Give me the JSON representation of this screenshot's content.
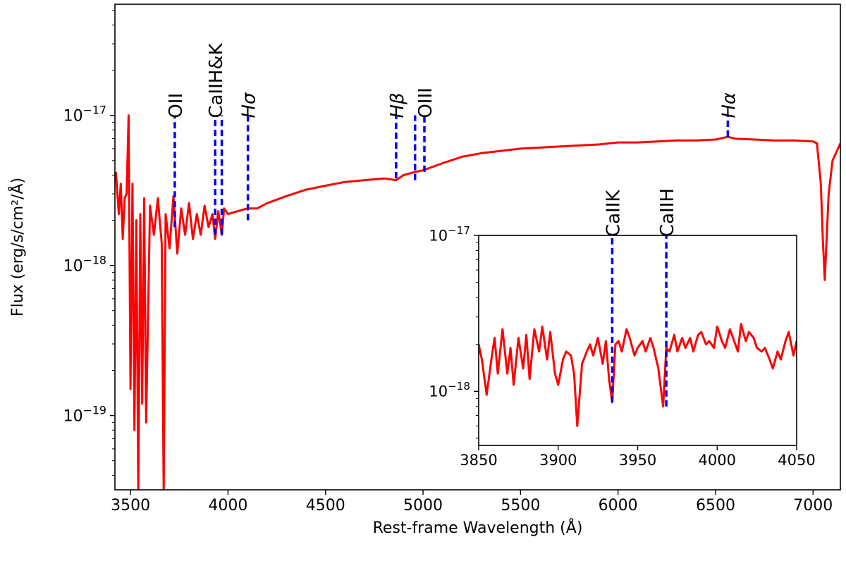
{
  "chart_data": [
    {
      "type": "line",
      "title": "",
      "xlabel": "Rest-frame Wavelength (Å)",
      "ylabel": "Flux (erg/s/cm²/Å)",
      "xlim": [
        3420,
        7140
      ],
      "ylim": [
        3.2e-20,
        5.5e-17
      ],
      "yscale": "log",
      "xticks": [
        3500,
        4000,
        4500,
        5000,
        5500,
        6000,
        6500,
        7000
      ],
      "yticks": [
        {
          "value": 1e-19,
          "base": "10",
          "exp": "−19"
        },
        {
          "value": 1e-18,
          "base": "10",
          "exp": "−18"
        },
        {
          "value": 1e-17,
          "base": "10",
          "exp": "−17"
        }
      ],
      "series_color": "#ff0000",
      "line_marker_color": "#0000ff",
      "spectrum": {
        "x": [
          3425,
          3440,
          3450,
          3460,
          3470,
          3480,
          3490,
          3500,
          3510,
          3520,
          3530,
          3540,
          3550,
          3560,
          3570,
          3580,
          3600,
          3620,
          3640,
          3660,
          3670,
          3680,
          3700,
          3720,
          3740,
          3760,
          3780,
          3800,
          3820,
          3840,
          3860,
          3880,
          3900,
          3920,
          3934,
          3950,
          3968,
          3980,
          4000,
          4050,
          4100,
          4150,
          4200,
          4300,
          4400,
          4500,
          4600,
          4700,
          4800,
          4862,
          4900,
          4960,
          5000,
          5100,
          5200,
          5300,
          5400,
          5500,
          5600,
          5700,
          5800,
          5900,
          6000,
          6100,
          6200,
          6300,
          6400,
          6500,
          6563,
          6600,
          6700,
          6800,
          6900,
          7000,
          7020,
          7040,
          7050,
          7060,
          7080,
          7100,
          7140
        ],
        "y": [
          4.2e-18,
          2.2e-18,
          3.5e-18,
          1.5e-18,
          2.8e-18,
          3e-18,
          1e-17,
          1.5e-19,
          3.5e-18,
          8e-20,
          2e-18,
          3e-20,
          2.2e-18,
          1.2e-19,
          2.8e-18,
          9e-20,
          2.5e-18,
          1.6e-18,
          2.8e-18,
          1.4e-18,
          3e-20,
          2.2e-18,
          1.3e-18,
          2.9e-18,
          1.2e-18,
          2.4e-18,
          1.6e-18,
          2.6e-18,
          1.5e-18,
          2.2e-18,
          1.6e-18,
          2.5e-18,
          1.8e-18,
          2.2e-18,
          1.5e-18,
          2.3e-18,
          1.6e-18,
          2.4e-18,
          2.2e-18,
          2.3e-18,
          2.4e-18,
          2.4e-18,
          2.6e-18,
          2.9e-18,
          3.2e-18,
          3.4e-18,
          3.6e-18,
          3.7e-18,
          3.8e-18,
          3.7e-18,
          4e-18,
          4.2e-18,
          4.3e-18,
          4.8e-18,
          5.3e-18,
          5.6e-18,
          5.8e-18,
          6e-18,
          6.1e-18,
          6.2e-18,
          6.3e-18,
          6.4e-18,
          6.6e-18,
          6.6e-18,
          6.7e-18,
          6.8e-18,
          6.8e-18,
          6.9e-18,
          7.2e-18,
          7e-18,
          6.9e-18,
          6.8e-18,
          6.8e-18,
          6.7e-18,
          6.5e-18,
          3.5e-18,
          1.5e-18,
          8e-19,
          3e-18,
          5e-18,
          6.5e-18
        ]
      },
      "line_markers": [
        {
          "label": "OII",
          "x": 3727,
          "y_range": [
            1.8e-18,
            1e-17
          ],
          "italic": false
        },
        {
          "label": "CaIIH&K",
          "x": 3934,
          "y_range": [
            1.6e-18,
            1e-17
          ],
          "italic": false
        },
        {
          "label": "",
          "x": 3968,
          "y_range": [
            1.6e-18,
            1e-17
          ],
          "italic": false
        },
        {
          "label": "Hσ",
          "x": 4102,
          "y_range": [
            2e-18,
            1e-17
          ],
          "italic": true
        },
        {
          "label": "Hβ",
          "x": 4862,
          "y_range": [
            3.8e-18,
            1e-17
          ],
          "italic": true
        },
        {
          "label": "",
          "x": 4959,
          "y_range": [
            3.7e-18,
            1e-17
          ],
          "italic": false
        },
        {
          "label": "OIII",
          "x": 5007,
          "y_range": [
            4.2e-18,
            1e-17
          ],
          "italic": false
        },
        {
          "label": "Hα",
          "x": 6563,
          "y_range": [
            7.2e-18,
            1e-17
          ],
          "italic": true
        }
      ]
    },
    {
      "type": "line",
      "title": "",
      "xlabel": "",
      "ylabel": "",
      "xlim": [
        3850,
        4050
      ],
      "ylim": [
        4.5e-19,
        1e-17
      ],
      "yscale": "log",
      "xticks": [
        3850,
        3900,
        3950,
        4000,
        4050
      ],
      "yticks": [
        {
          "value": 1e-18,
          "base": "10",
          "exp": "−18"
        },
        {
          "value": 1e-17,
          "base": "10",
          "exp": "−17"
        }
      ],
      "spectrum": {
        "x": [
          3850,
          3852,
          3855,
          3858,
          3860,
          3862,
          3865,
          3868,
          3870,
          3872,
          3875,
          3878,
          3880,
          3882,
          3885,
          3888,
          3890,
          3893,
          3895,
          3898,
          3900,
          3903,
          3905,
          3908,
          3910,
          3912,
          3915,
          3918,
          3920,
          3922,
          3925,
          3928,
          3930,
          3932,
          3934,
          3936,
          3938,
          3940,
          3943,
          3945,
          3948,
          3950,
          3953,
          3955,
          3958,
          3960,
          3963,
          3966,
          3968,
          3970,
          3973,
          3975,
          3978,
          3980,
          3983,
          3985,
          3988,
          3990,
          3993,
          3995,
          3998,
          4000,
          4003,
          4005,
          4008,
          4010,
          4013,
          4015,
          4018,
          4020,
          4023,
          4025,
          4028,
          4030,
          4033,
          4035,
          4038,
          4040,
          4043,
          4045,
          4048,
          4050
        ],
        "y": [
          2e-18,
          1.6e-18,
          9.5e-19,
          1.6e-18,
          2.2e-18,
          1.3e-18,
          2.5e-18,
          1.3e-18,
          1.9e-18,
          1.1e-18,
          2.2e-18,
          1.4e-18,
          2.3e-18,
          1.2e-18,
          2.5e-18,
          1.8e-18,
          2.6e-18,
          1.6e-18,
          2.4e-18,
          1.3e-18,
          1.1e-18,
          1.6e-18,
          1.8e-18,
          1.7e-18,
          1.3e-18,
          6e-19,
          1.5e-18,
          1.8e-18,
          2e-18,
          1.7e-18,
          2.2e-18,
          1.5e-18,
          2.1e-18,
          1.2e-18,
          8.5e-19,
          2e-18,
          2.1e-18,
          1.8e-18,
          2.5e-18,
          2.2e-18,
          1.7e-18,
          1.9e-18,
          2.1e-18,
          1.8e-18,
          2.2e-18,
          1.9e-18,
          1.4e-18,
          8e-19,
          1.9e-18,
          1.8e-18,
          2.3e-18,
          1.8e-18,
          2.2e-18,
          1.9e-18,
          2.2e-18,
          1.8e-18,
          2.3e-18,
          2.4e-18,
          2e-18,
          2.1e-18,
          1.9e-18,
          2.6e-18,
          2.1e-18,
          1.9e-18,
          2.5e-18,
          2.2e-18,
          1.8e-18,
          2.7e-18,
          2.1e-18,
          2.4e-18,
          2.2e-18,
          1.9e-18,
          1.8e-18,
          1.9e-18,
          1.6e-18,
          1.4e-18,
          1.8e-18,
          1.6e-18,
          2.1e-18,
          2.4e-18,
          1.7e-18,
          2.1e-18
        ]
      },
      "line_markers": [
        {
          "label": "CaIIK",
          "x": 3934,
          "y_range": [
            8.5e-19,
            1e-17
          ],
          "italic": false
        },
        {
          "label": "CaIIH",
          "x": 3968,
          "y_range": [
            8e-19,
            1e-17
          ],
          "italic": false
        }
      ]
    }
  ]
}
